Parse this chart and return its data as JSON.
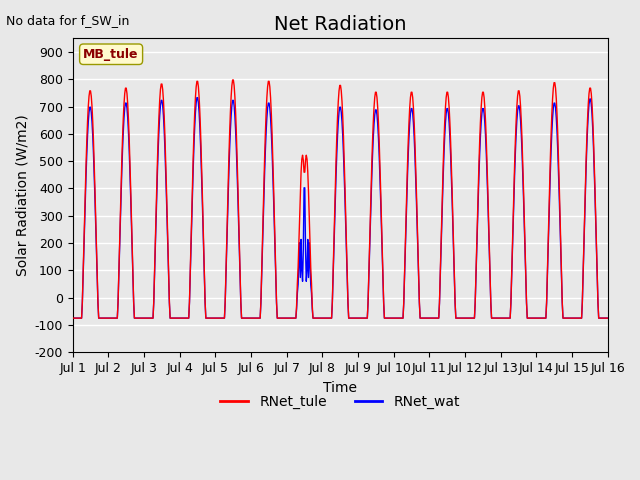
{
  "title": "Net Radiation",
  "top_left_note": "No data for f_SW_in",
  "ylabel": "Solar Radiation (W/m2)",
  "xlabel": "Time",
  "ylim": [
    -200,
    950
  ],
  "yticks": [
    -200,
    -100,
    0,
    100,
    200,
    300,
    400,
    500,
    600,
    700,
    800,
    900
  ],
  "xlim_days": [
    1,
    16
  ],
  "xtick_labels": [
    "Jul 1",
    "Jul 2",
    "Jul 3",
    "Jul 4",
    "Jul 5",
    "Jul 6",
    "Jul 7",
    "Jul 8",
    "Jul 9",
    "Jul 10",
    "Jul 11",
    "Jul 12",
    "Jul 13",
    "Jul 14",
    "Jul 15",
    "Jul 16"
  ],
  "site_label": "MB_tule",
  "line1_color": "#FF0000",
  "line2_color": "#0000FF",
  "line1_label": "RNet_tule",
  "line2_label": "RNet_wat",
  "background_color": "#E8E8E8",
  "plot_bg_color": "#E8E8E8",
  "grid_color": "#FFFFFF",
  "n_days": 15,
  "pts_per_day": 48,
  "night_value": -75,
  "day_peaks_tule": [
    760,
    770,
    785,
    795,
    800,
    795,
    615,
    780,
    755,
    755,
    755,
    755,
    760,
    790,
    770
  ],
  "day_peaks_wat": [
    700,
    715,
    725,
    735,
    725,
    715,
    420,
    700,
    690,
    695,
    695,
    695,
    705,
    715,
    730
  ],
  "cloudy_day": 7,
  "title_fontsize": 14,
  "label_fontsize": 10,
  "tick_fontsize": 9
}
